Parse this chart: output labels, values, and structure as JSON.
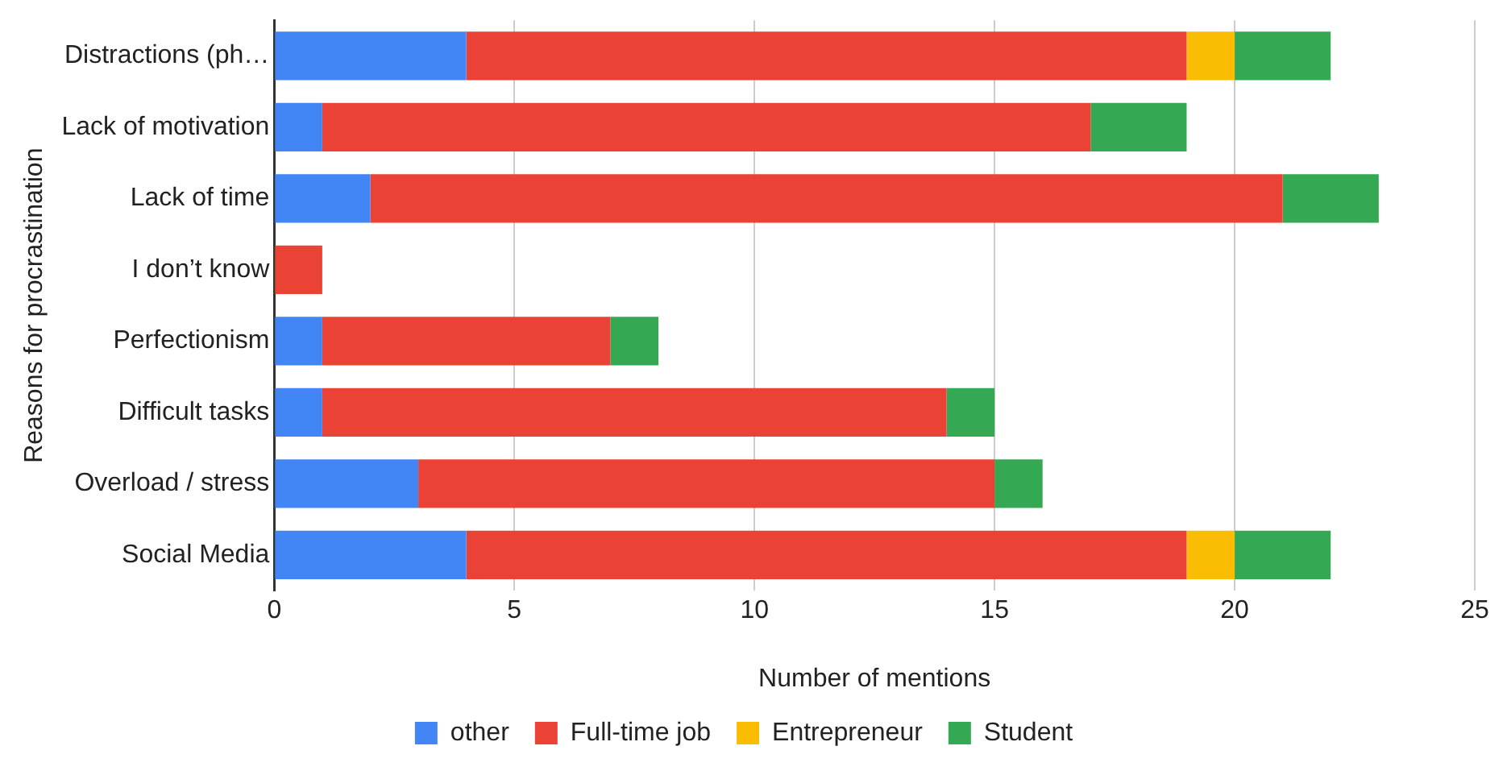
{
  "chart_data": {
    "type": "bar",
    "orientation": "horizontal",
    "stacked": true,
    "categories": [
      "Distractions (ph…",
      "Lack of motivation",
      "Lack of time",
      "I don’t know",
      "Perfectionism",
      "Difficult tasks",
      "Overload / stress",
      "Social Media"
    ],
    "series": [
      {
        "name": "other",
        "color": "#4285f4",
        "values": [
          4,
          1,
          2,
          0,
          1,
          1,
          3,
          4
        ]
      },
      {
        "name": "Full-time job",
        "color": "#ea4335",
        "values": [
          15,
          16,
          19,
          1,
          6,
          13,
          12,
          15
        ]
      },
      {
        "name": "Entrepreneur",
        "color": "#fbbc04",
        "values": [
          1,
          0,
          0,
          0,
          0,
          0,
          0,
          1
        ]
      },
      {
        "name": "Student",
        "color": "#34a853",
        "values": [
          2,
          2,
          2,
          0,
          1,
          1,
          1,
          2
        ]
      }
    ],
    "xlabel": "Number of mentions",
    "ylabel": "Reasons for procrastination",
    "xlim": [
      0,
      25
    ],
    "xticks": [
      0,
      5,
      10,
      15,
      20,
      25
    ],
    "grid": "x",
    "legend": "bottom"
  }
}
